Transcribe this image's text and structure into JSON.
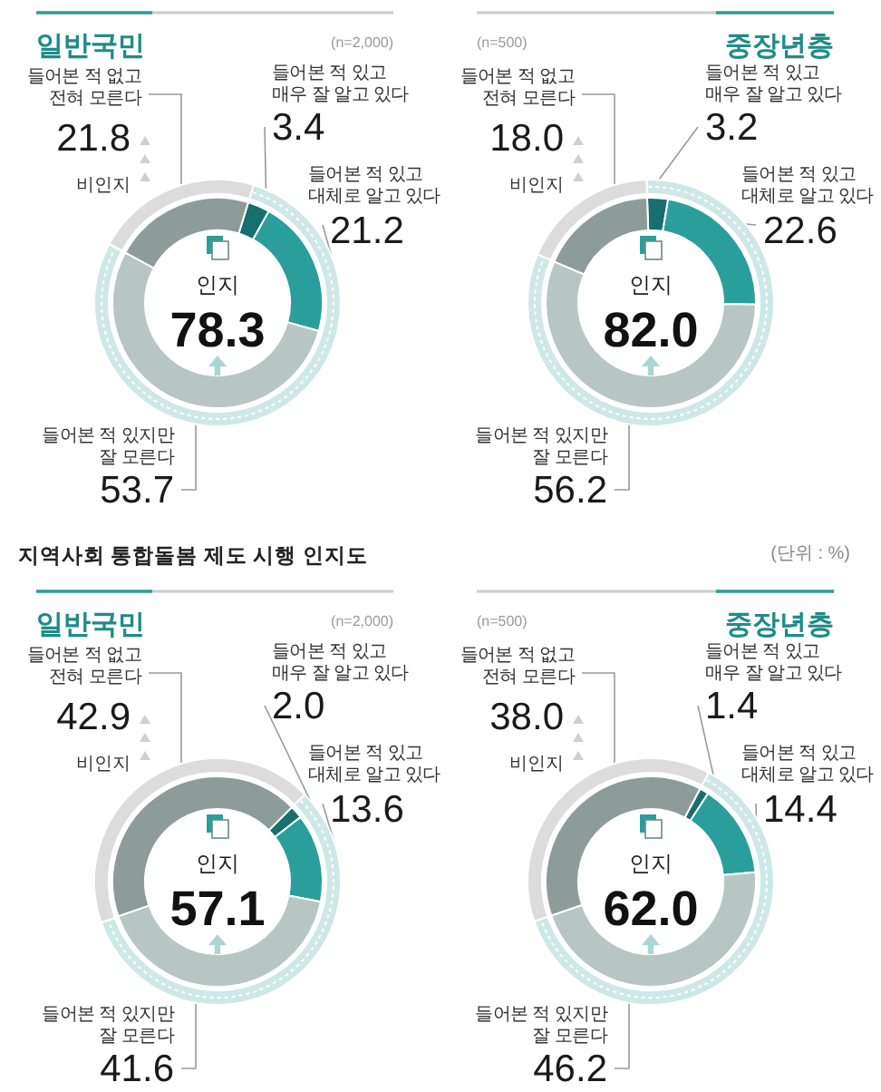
{
  "chart_data": [
    {
      "type": "donut",
      "title": "일반국민",
      "subtitle": "(n=2,000)",
      "categories": [
        "들어본 적 있고\n매우 잘 알고 있다",
        "들어본 적 있고\n대체로 알고 있다",
        "들어본 적 있지만\n잘 모른다",
        "들어본 적 없고\n전혀 모른다"
      ],
      "values": [
        3.4,
        21.2,
        53.7,
        21.8
      ],
      "colors": [
        "#17706d",
        "#2a9e9a",
        "#b7c6c3",
        "#8d9c99"
      ],
      "value_labels": [
        "3.4",
        "21.2",
        "53.7",
        "21.8"
      ]
    },
    {
      "type": "donut",
      "categories": [
        "인지",
        "비인지"
      ],
      "values": [
        78.3,
        21.8
      ],
      "colors": [
        "#cde8e6",
        "#dcdcdc"
      ],
      "value_labels": [
        "78.3",
        null
      ]
    },
    {
      "type": "donut",
      "title": "중장년층",
      "subtitle": "(n=500)",
      "categories": [
        "들어본 적 있고\n매우 잘 알고 있다",
        "들어본 적 있고\n대체로 알고 있다",
        "들어본 적 있지만\n잘 모른다",
        "들어본 적 없고\n전혀 모른다"
      ],
      "values": [
        3.2,
        22.6,
        56.2,
        18.0
      ],
      "colors": [
        "#17706d",
        "#2a9e9a",
        "#b7c6c3",
        "#8d9c99"
      ],
      "value_labels": [
        "3.2",
        "22.6",
        "56.2",
        "18.0"
      ]
    },
    {
      "type": "donut",
      "categories": [
        "인지",
        "비인지"
      ],
      "values": [
        82.0,
        18.0
      ],
      "colors": [
        "#cde8e6",
        "#dcdcdc"
      ],
      "value_labels": [
        "82.0",
        null
      ]
    },
    {
      "type": "donut",
      "title": "일반국민",
      "subtitle": "(n=2,000)",
      "annotations": [
        "지역사회 통합돌봄 제도 시행 인지도"
      ],
      "categories": [
        "들어본 적 있고\n매우 잘 알고 있다",
        "들어본 적 있고\n대체로 알고 있다",
        "들어본 적 있지만\n잘 모른다",
        "들어본 적 없고\n전혀 모른다"
      ],
      "values": [
        2.0,
        13.6,
        41.6,
        42.9
      ],
      "colors": [
        "#17706d",
        "#2a9e9a",
        "#b7c6c3",
        "#8d9c99"
      ],
      "value_labels": [
        "2.0",
        "13.6",
        "41.6",
        "42.9"
      ]
    },
    {
      "type": "donut",
      "categories": [
        "인지",
        "비인지"
      ],
      "values": [
        57.1,
        42.9
      ],
      "colors": [
        "#cde8e6",
        "#dcdcdc"
      ],
      "value_labels": [
        "57.1",
        null
      ]
    },
    {
      "type": "donut",
      "title": "중장년층",
      "subtitle": "(n=500)",
      "annotations": [
        "(단위 : %)"
      ],
      "categories": [
        "들어본 적 있고\n매우 잘 알고 있다",
        "들어본 적 있고\n대체로 알고 있다",
        "들어본 적 있지만\n잘 모른다",
        "들어본 적 없고\n전혀 모른다"
      ],
      "values": [
        1.4,
        14.4,
        46.2,
        38.0
      ],
      "colors": [
        "#17706d",
        "#2a9e9a",
        "#b7c6c3",
        "#8d9c99"
      ],
      "value_labels": [
        "1.4",
        "14.4",
        "46.2",
        "38.0"
      ]
    },
    {
      "type": "donut",
      "categories": [
        "인지",
        "비인지"
      ],
      "values": [
        62.0,
        38.0
      ],
      "colors": [
        "#cde8e6",
        "#dcdcdc"
      ],
      "value_labels": [
        "62.0",
        null
      ]
    }
  ]
}
